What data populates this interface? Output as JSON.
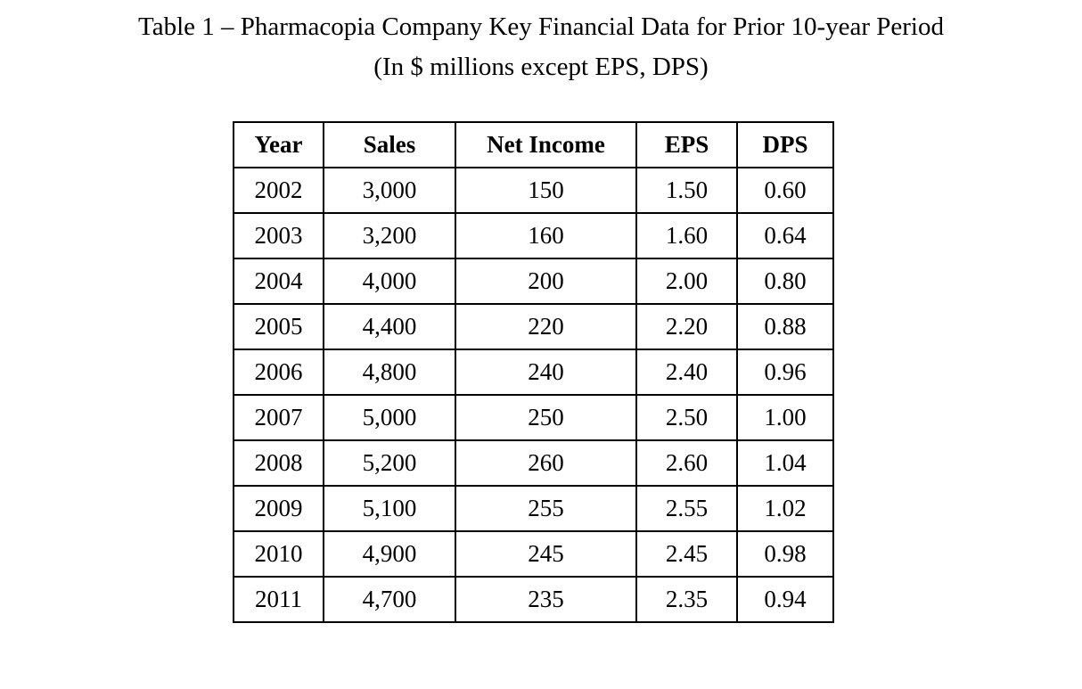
{
  "title": {
    "line1": "Table 1 – Pharmacopia Company Key Financial Data for Prior 10-year Period",
    "line2": "(In $ millions except EPS, DPS)"
  },
  "table": {
    "headers": [
      "Year",
      "Sales",
      "Net Income",
      "EPS",
      "DPS"
    ],
    "rows": [
      [
        "2002",
        "3,000",
        "150",
        "1.50",
        "0.60"
      ],
      [
        "2003",
        "3,200",
        "160",
        "1.60",
        "0.64"
      ],
      [
        "2004",
        "4,000",
        "200",
        "2.00",
        "0.80"
      ],
      [
        "2005",
        "4,400",
        "220",
        "2.20",
        "0.88"
      ],
      [
        "2006",
        "4,800",
        "240",
        "2.40",
        "0.96"
      ],
      [
        "2007",
        "5,000",
        "250",
        "2.50",
        "1.00"
      ],
      [
        "2008",
        "5,200",
        "260",
        "2.60",
        "1.04"
      ],
      [
        "2009",
        "5,100",
        "255",
        "2.55",
        "1.02"
      ],
      [
        "2010",
        "4,900",
        "245",
        "2.45",
        "0.98"
      ],
      [
        "2011",
        "4,700",
        "235",
        "2.35",
        "0.94"
      ]
    ]
  }
}
